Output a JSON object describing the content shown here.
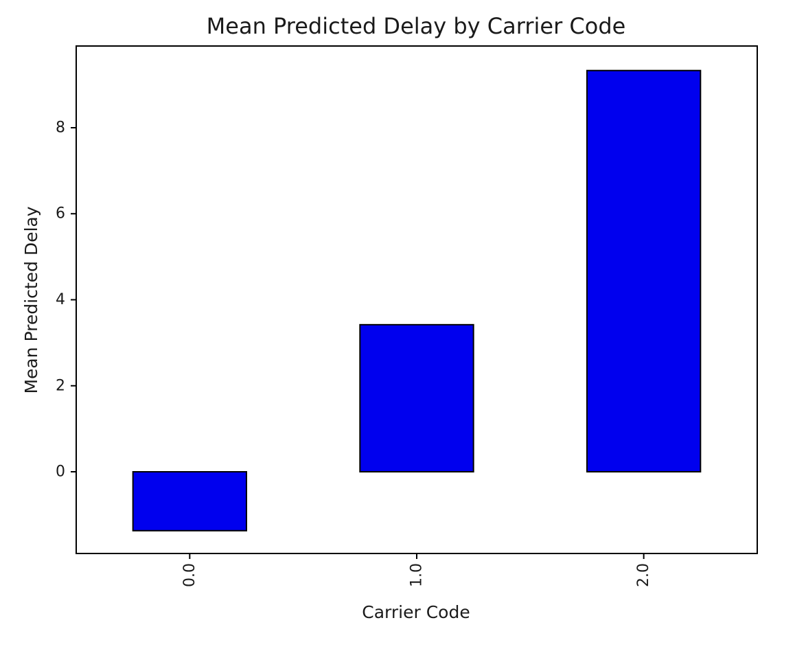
{
  "chart_data": {
    "type": "bar",
    "title": "Mean Predicted Delay by Carrier Code",
    "xlabel": "Carrier Code",
    "ylabel": "Mean Predicted Delay",
    "categories": [
      "0.0",
      "1.0",
      "2.0"
    ],
    "values": [
      -1.37,
      3.42,
      9.33
    ],
    "ylim": [
      -1.9,
      9.9
    ],
    "yticks": [
      0,
      2,
      4,
      6,
      8
    ],
    "bar_color": "#0000ee",
    "edge_color": "#000000",
    "grid": false,
    "legend": "none",
    "xtick_rotation": "vertical"
  }
}
